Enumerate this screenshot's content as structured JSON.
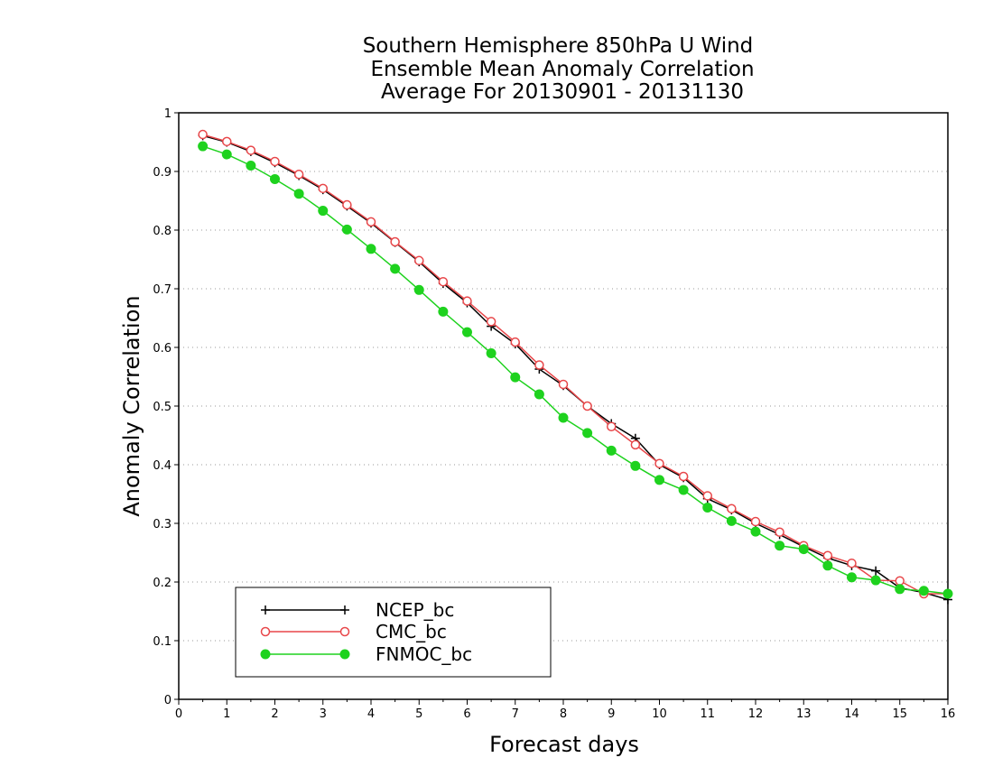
{
  "chart_data": {
    "type": "line",
    "title_lines": [
      "Southern Hemisphere 850hPa U Wind",
      "Ensemble Mean Anomaly Correlation",
      "Average For 20130901 - 20131130"
    ],
    "xlabel": "Forecast days",
    "ylabel": "Anomaly Correlation",
    "xlim": [
      0,
      16
    ],
    "ylim": [
      0,
      1
    ],
    "x_ticks": [
      "0",
      "1",
      "2",
      "3",
      "4",
      "5",
      "6",
      "7",
      "8",
      "9",
      "10",
      "11",
      "12",
      "13",
      "14",
      "15",
      "16"
    ],
    "y_ticks": [
      "0",
      "0.1",
      "0.2",
      "0.3",
      "0.4",
      "0.5",
      "0.6",
      "0.7",
      "0.8",
      "0.9",
      "1"
    ],
    "grid": "horizontal dotted",
    "legend_position": "bottom-left",
    "x": [
      0.5,
      1,
      1.5,
      2,
      2.5,
      3,
      3.5,
      4,
      4.5,
      5,
      5.5,
      6,
      6.5,
      7,
      7.5,
      8,
      8.5,
      9,
      9.5,
      10,
      10.5,
      11,
      11.5,
      12,
      12.5,
      13,
      13.5,
      14,
      14.5,
      15,
      15.5,
      16
    ],
    "series": [
      {
        "name": "NCEP_bc",
        "color": "#000000",
        "marker": "plus",
        "values": [
          0.961,
          0.95,
          0.934,
          0.915,
          0.893,
          0.869,
          0.841,
          0.812,
          0.779,
          0.746,
          0.709,
          0.676,
          0.636,
          0.606,
          0.563,
          0.535,
          0.5,
          0.47,
          0.445,
          0.4,
          0.378,
          0.342,
          0.323,
          0.3,
          0.281,
          0.26,
          0.241,
          0.228,
          0.219,
          0.19,
          0.182,
          0.17
        ]
      },
      {
        "name": "CMC_bc",
        "color": "#e8474a",
        "marker": "open-circle",
        "values": [
          0.963,
          0.951,
          0.936,
          0.917,
          0.895,
          0.871,
          0.843,
          0.814,
          0.78,
          0.748,
          0.712,
          0.679,
          0.644,
          0.609,
          0.57,
          0.537,
          0.5,
          0.465,
          0.434,
          0.402,
          0.38,
          0.347,
          0.325,
          0.303,
          0.285,
          0.262,
          0.245,
          0.232,
          0.203,
          0.202,
          0.18,
          0.18
        ]
      },
      {
        "name": "FNMOC_bc",
        "color": "#1ed21e",
        "marker": "filled-circle",
        "values": [
          0.943,
          0.929,
          0.91,
          0.887,
          0.862,
          0.833,
          0.801,
          0.768,
          0.734,
          0.698,
          0.661,
          0.626,
          0.59,
          0.549,
          0.52,
          0.48,
          0.454,
          0.424,
          0.398,
          0.374,
          0.357,
          0.327,
          0.304,
          0.286,
          0.262,
          0.256,
          0.228,
          0.208,
          0.203,
          0.188,
          0.185,
          0.18
        ]
      }
    ]
  }
}
